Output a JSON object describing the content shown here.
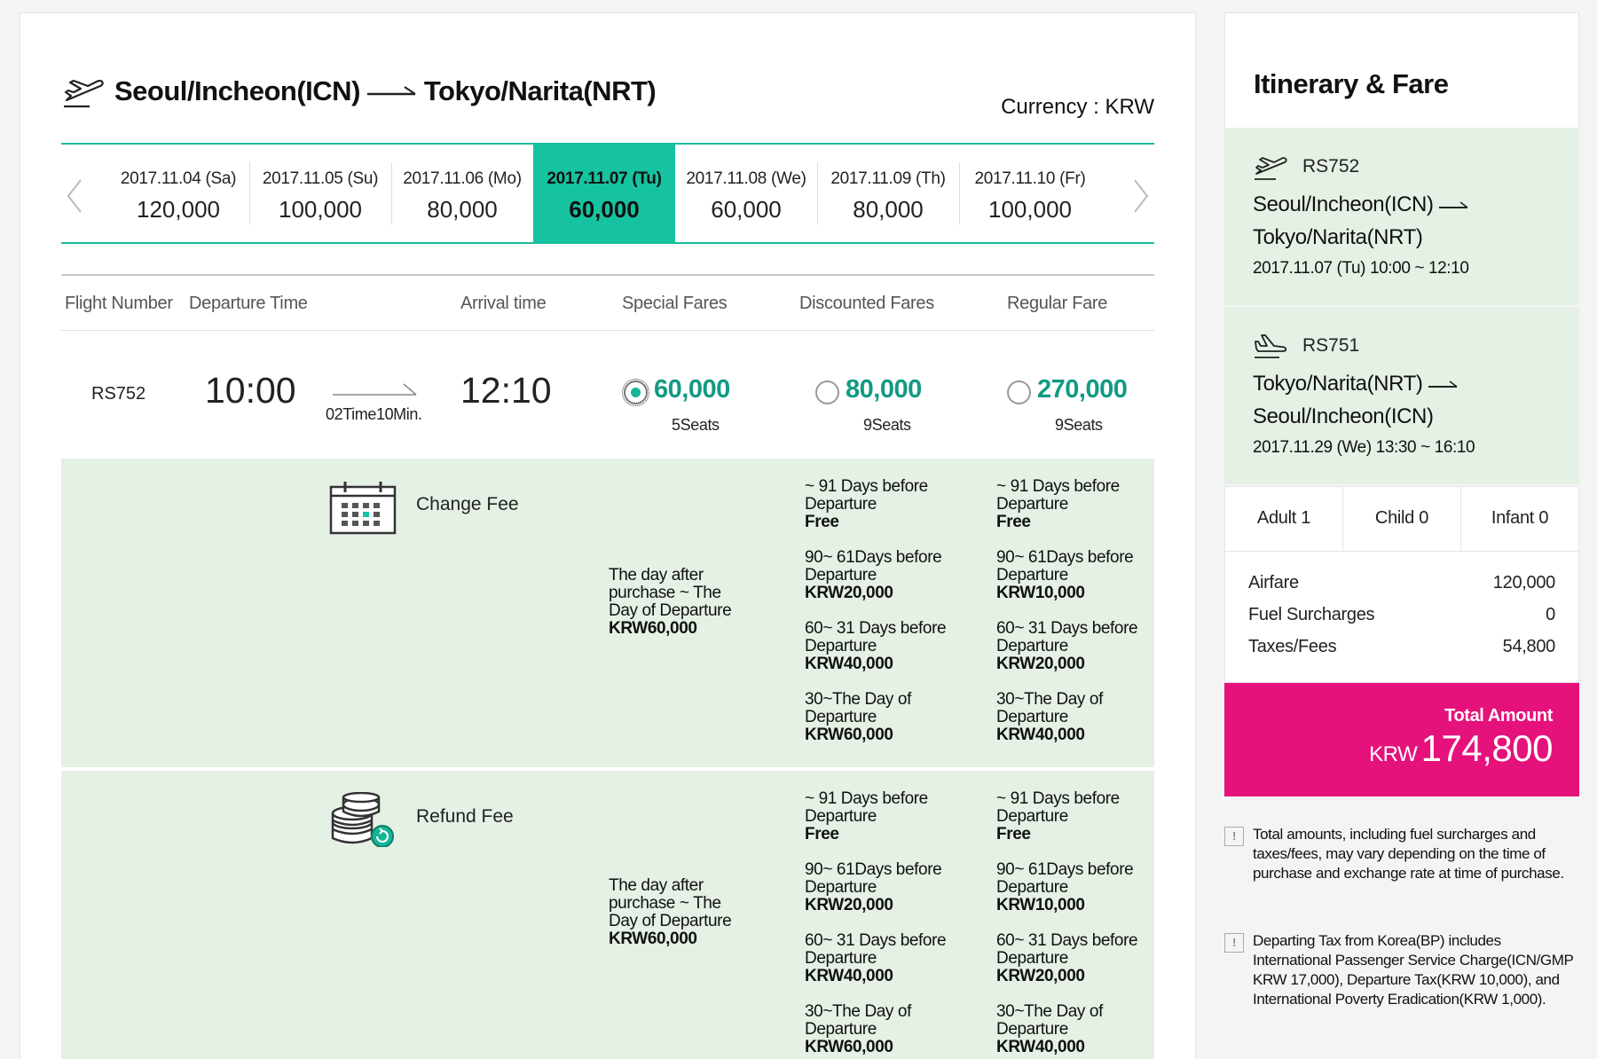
{
  "route": {
    "origin": "Seoul/Incheon(ICN)",
    "destination": "Tokyo/Narita(NRT)",
    "currency_label": "Currency : KRW"
  },
  "dates": [
    {
      "date": "2017.11.04 (Sa)",
      "price": "120,000",
      "active": false
    },
    {
      "date": "2017.11.05 (Su)",
      "price": "100,000",
      "active": false
    },
    {
      "date": "2017.11.06 (Mo)",
      "price": "80,000",
      "active": false
    },
    {
      "date": "2017.11.07 (Tu)",
      "price": "60,000",
      "active": true
    },
    {
      "date": "2017.11.08 (We)",
      "price": "60,000",
      "active": false
    },
    {
      "date": "2017.11.09 (Th)",
      "price": "80,000",
      "active": false
    },
    {
      "date": "2017.11.10 (Fr)",
      "price": "100,000",
      "active": false
    }
  ],
  "table_header": {
    "flight_number": "Flight Number",
    "departure_time": "Departure Time",
    "arrival_time": "Arrival time",
    "special": "Special Fares",
    "discounted": "Discounted Fares",
    "regular": "Regular Fare"
  },
  "flight": {
    "number": "RS752",
    "departure": "10:00",
    "arrival": "12:10",
    "duration": "02Time10Min.",
    "special": {
      "amount": "60,000",
      "seats": "5Seats",
      "selected": true
    },
    "discounted": {
      "amount": "80,000",
      "seats": "9Seats",
      "selected": false
    },
    "regular": {
      "amount": "270,000",
      "seats": "9Seats",
      "selected": false
    }
  },
  "change_fee": {
    "label": "Change Fee",
    "special": {
      "text": "The day after purchase ~ The Day of Departure",
      "amount": "KRW60,000"
    },
    "discounted": [
      {
        "text": "~ 91 Days before Departure",
        "amount": "Free"
      },
      {
        "text": "90~ 61Days before Departure",
        "amount": "KRW20,000"
      },
      {
        "text": "60~ 31 Days before Departure",
        "amount": "KRW40,000"
      },
      {
        "text": "30~The Day of Departure",
        "amount": "KRW60,000"
      }
    ],
    "regular": [
      {
        "text": "~ 91 Days before Departure",
        "amount": "Free"
      },
      {
        "text": "90~ 61Days before Departure",
        "amount": "KRW10,000"
      },
      {
        "text": "60~ 31 Days before Departure",
        "amount": "KRW20,000"
      },
      {
        "text": "30~The Day of Departure",
        "amount": "KRW40,000"
      }
    ]
  },
  "refund_fee": {
    "label": "Refund Fee",
    "special": {
      "text": "The day after purchase ~ The Day of Departure",
      "amount": "KRW60,000"
    },
    "discounted": [
      {
        "text": "~ 91 Days before Departure",
        "amount": "Free"
      },
      {
        "text": "90~ 61Days before Departure",
        "amount": "KRW20,000"
      },
      {
        "text": "60~ 31 Days before Departure",
        "amount": "KRW40,000"
      },
      {
        "text": "30~The Day of Departure",
        "amount": "KRW60,000"
      }
    ],
    "regular": [
      {
        "text": "~ 91 Days before Departure",
        "amount": "Free"
      },
      {
        "text": "90~ 61Days before Departure",
        "amount": "KRW10,000"
      },
      {
        "text": "60~ 31 Days before Departure",
        "amount": "KRW20,000"
      },
      {
        "text": "30~The Day of Departure",
        "amount": "KRW40,000"
      }
    ]
  },
  "itinerary": {
    "title": "Itinerary & Fare",
    "outbound": {
      "flight": "RS752",
      "from": "Seoul/Incheon(ICN)",
      "to": "Tokyo/Narita(NRT)",
      "time": "2017.11.07 (Tu) 10:00 ~ 12:10"
    },
    "return": {
      "flight": "RS751",
      "from": "Tokyo/Narita(NRT)",
      "to": "Seoul/Incheon(ICN)",
      "time": "2017.11.29 (We) 13:30 ~ 16:10"
    },
    "passengers": {
      "adult": "Adult 1",
      "child": "Child 0",
      "infant": "Infant 0"
    },
    "costs": [
      {
        "label": "Airfare",
        "value": "120,000"
      },
      {
        "label": "Fuel Surcharges",
        "value": "0"
      },
      {
        "label": "Taxes/Fees",
        "value": "54,800"
      }
    ],
    "total_label": "Total Amount",
    "total_currency": "KRW",
    "total_value": "174,800",
    "notice_1": "Total amounts, including fuel surcharges and taxes/fees, may vary depending on the time of purchase and exchange rate at time of purchase.",
    "notice_2": "Departing Tax from Korea(BP) includes International Passenger Service Charge(ICN/GMP KRW 17,000), Departure Tax(KRW 10,000), and International Poverty Eradication(KRW 1,000).",
    "notice_icon": "!"
  },
  "colors": {
    "accent": "#16c3a0",
    "fare_text": "#119a83",
    "fee_bg": "#e4f1e4",
    "total_bg": "#e6127c"
  }
}
